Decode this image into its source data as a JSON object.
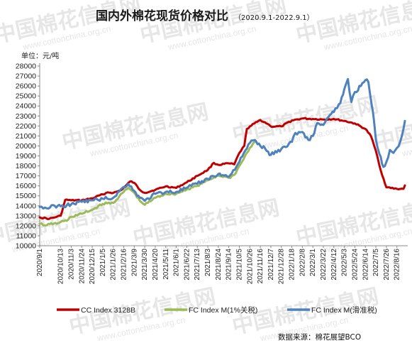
{
  "title": "国内外棉花现货价格对比",
  "subtitle": "（2020.9.1-2022.9.1）",
  "unit_label": "单位：元/吨",
  "source_label": "数据来源：棉花展望BCO",
  "watermark": {
    "text": "中国棉花信息网",
    "url": "www.cottonchina.org.cn"
  },
  "colors": {
    "cc": "#c00000",
    "fc1": "#9bbb59",
    "fc2": "#4f81bd"
  },
  "chart_data": {
    "type": "line",
    "title": "国内外棉花现货价格对比",
    "subtitle": "（2020.9.1-2022.9.1）",
    "ylabel": "单位：元/吨",
    "ylim": [
      10000,
      28000
    ],
    "yticks": [
      10000,
      11000,
      12000,
      13000,
      14000,
      15000,
      16000,
      17000,
      18000,
      19000,
      20000,
      21000,
      22000,
      23000,
      24000,
      25000,
      26000,
      27000,
      28000
    ],
    "x_range": [
      "2020/9/1",
      "2022/9/1"
    ],
    "xticks": [
      "2020/9/1",
      "2020/10/13",
      "2020/11/3",
      "2020/11/24",
      "2020/12/15",
      "2021/1/5",
      "2021/1/26",
      "2021/2/16",
      "2021/3/9",
      "2021/3/30",
      "2021/4/20",
      "2021/5/11",
      "2021/6/1",
      "2021/6/22",
      "2021/7/13",
      "2021/8/3",
      "2021/8/24",
      "2021/9/14",
      "2021/10/5",
      "2021/10/26",
      "2021/11/16",
      "2021/12/7",
      "2021/12/28",
      "2022/1/18",
      "2022/2/8",
      "2022/3/1",
      "2022/3/22",
      "2022/4/12",
      "2022/5/3",
      "2022/5/24",
      "2022/6/14",
      "2022/7/5",
      "2022/7/26",
      "2022/8/16"
    ],
    "grid": false,
    "legend_position": "bottom",
    "series": [
      {
        "name": "CC Index 3128B",
        "color": "#c00000",
        "points": [
          [
            "2020/9/1",
            12850
          ],
          [
            "2020/9/20",
            12700
          ],
          [
            "2020/10/5",
            12900
          ],
          [
            "2020/10/13",
            13000
          ],
          [
            "2020/10/22",
            14600
          ],
          [
            "2020/11/3",
            14550
          ],
          [
            "2020/11/24",
            14550
          ],
          [
            "2020/12/15",
            14750
          ],
          [
            "2021/1/5",
            15150
          ],
          [
            "2021/1/15",
            15350
          ],
          [
            "2021/1/26",
            15300
          ],
          [
            "2021/2/10",
            15550
          ],
          [
            "2021/2/20",
            16000
          ],
          [
            "2021/3/1",
            16450
          ],
          [
            "2021/3/9",
            16300
          ],
          [
            "2021/3/20",
            15600
          ],
          [
            "2021/3/30",
            15300
          ],
          [
            "2021/4/20",
            15600
          ],
          [
            "2021/5/11",
            15950
          ],
          [
            "2021/6/1",
            15800
          ],
          [
            "2021/6/22",
            16350
          ],
          [
            "2021/7/13",
            17000
          ],
          [
            "2021/8/3",
            17600
          ],
          [
            "2021/8/15",
            18300
          ],
          [
            "2021/8/24",
            18100
          ],
          [
            "2021/9/14",
            18250
          ],
          [
            "2021/9/25",
            18150
          ],
          [
            "2021/10/5",
            19300
          ],
          [
            "2021/10/15",
            20000
          ],
          [
            "2021/10/20",
            21700
          ],
          [
            "2021/10/26",
            21950
          ],
          [
            "2021/11/16",
            22600
          ],
          [
            "2021/12/1",
            22200
          ],
          [
            "2021/12/7",
            21950
          ],
          [
            "2021/12/28",
            21950
          ],
          [
            "2022/1/18",
            22550
          ],
          [
            "2022/2/8",
            22750
          ],
          [
            "2022/3/1",
            22700
          ],
          [
            "2022/3/22",
            22650
          ],
          [
            "2022/4/12",
            22700
          ],
          [
            "2022/5/3",
            22500
          ],
          [
            "2022/5/24",
            22250
          ],
          [
            "2022/6/14",
            21700
          ],
          [
            "2022/6/25",
            21000
          ],
          [
            "2022/7/5",
            19500
          ],
          [
            "2022/7/15",
            17500
          ],
          [
            "2022/7/26",
            15850
          ],
          [
            "2022/8/16",
            15700
          ],
          [
            "2022/8/29",
            15700
          ],
          [
            "2022/9/1",
            16050
          ]
        ]
      },
      {
        "name": "FC Index M(1%关税)",
        "color": "#9bbb59",
        "points": [
          [
            "2020/9/1",
            12200
          ],
          [
            "2020/9/15",
            12050
          ],
          [
            "2020/9/30",
            12250
          ],
          [
            "2020/10/5",
            12200
          ],
          [
            "2020/10/13",
            12400
          ],
          [
            "2020/10/25",
            12500
          ],
          [
            "2020/11/3",
            12900
          ],
          [
            "2020/11/24",
            13200
          ],
          [
            "2020/12/15",
            13600
          ],
          [
            "2021/1/5",
            14200
          ],
          [
            "2021/1/26",
            14300
          ],
          [
            "2021/2/16",
            15400
          ],
          [
            "2021/2/25",
            15800
          ],
          [
            "2021/3/9",
            15300
          ],
          [
            "2021/3/20",
            14500
          ],
          [
            "2021/3/30",
            14100
          ],
          [
            "2021/4/20",
            14800
          ],
          [
            "2021/5/11",
            15200
          ],
          [
            "2021/6/1",
            15200
          ],
          [
            "2021/6/22",
            15650
          ],
          [
            "2021/7/13",
            16000
          ],
          [
            "2021/8/3",
            16550
          ],
          [
            "2021/8/24",
            17050
          ],
          [
            "2021/9/14",
            16800
          ],
          [
            "2021/9/25",
            17100
          ],
          [
            "2021/10/26",
            19800
          ],
          [
            "2021/11/5",
            20400
          ]
        ]
      },
      {
        "name": "FC Index M(滑准税)",
        "color": "#4f81bd",
        "points": [
          [
            "2020/9/1",
            13900
          ],
          [
            "2020/9/15",
            13750
          ],
          [
            "2020/10/1",
            14000
          ],
          [
            "2020/10/13",
            13950
          ],
          [
            "2020/10/25",
            14050
          ],
          [
            "2020/11/3",
            14150
          ],
          [
            "2020/11/24",
            14400
          ],
          [
            "2020/12/15",
            14550
          ],
          [
            "2021/1/5",
            14700
          ],
          [
            "2021/1/26",
            14800
          ],
          [
            "2021/2/16",
            15900
          ],
          [
            "2021/2/25",
            16200
          ],
          [
            "2021/3/9",
            15500
          ],
          [
            "2021/3/20",
            14800
          ],
          [
            "2021/3/30",
            14500
          ],
          [
            "2021/4/20",
            15200
          ],
          [
            "2021/5/11",
            15400
          ],
          [
            "2021/6/1",
            15400
          ],
          [
            "2021/6/22",
            15800
          ],
          [
            "2021/7/13",
            16200
          ],
          [
            "2021/8/3",
            16700
          ],
          [
            "2021/8/24",
            17200
          ],
          [
            "2021/9/14",
            16900
          ],
          [
            "2021/10/5",
            18400
          ],
          [
            "2021/10/26",
            20300
          ],
          [
            "2021/11/5",
            20600
          ],
          [
            "2021/11/16",
            20000
          ],
          [
            "2021/11/26",
            19700
          ],
          [
            "2021/12/7",
            19100
          ],
          [
            "2021/12/28",
            19700
          ],
          [
            "2022/1/18",
            20400
          ],
          [
            "2022/1/25",
            21300
          ],
          [
            "2022/2/8",
            21400
          ],
          [
            "2022/2/20",
            20600
          ],
          [
            "2022/3/1",
            21000
          ],
          [
            "2022/3/10",
            22300
          ],
          [
            "2022/3/22",
            22100
          ],
          [
            "2022/4/1",
            22900
          ],
          [
            "2022/4/12",
            23400
          ],
          [
            "2022/4/25",
            24300
          ],
          [
            "2022/5/3",
            25700
          ],
          [
            "2022/5/10",
            26700
          ],
          [
            "2022/5/17",
            24400
          ],
          [
            "2022/5/24",
            25400
          ],
          [
            "2022/6/5",
            26000
          ],
          [
            "2022/6/14",
            26600
          ],
          [
            "2022/6/20",
            26400
          ],
          [
            "2022/6/27",
            24000
          ],
          [
            "2022/7/1",
            22600
          ],
          [
            "2022/7/5",
            20600
          ],
          [
            "2022/7/12",
            19200
          ],
          [
            "2022/7/20",
            17900
          ],
          [
            "2022/7/26",
            18400
          ],
          [
            "2022/8/2",
            19600
          ],
          [
            "2022/8/9",
            19300
          ],
          [
            "2022/8/16",
            19800
          ],
          [
            "2022/8/23",
            20500
          ],
          [
            "2022/9/1",
            22500
          ]
        ]
      }
    ]
  }
}
